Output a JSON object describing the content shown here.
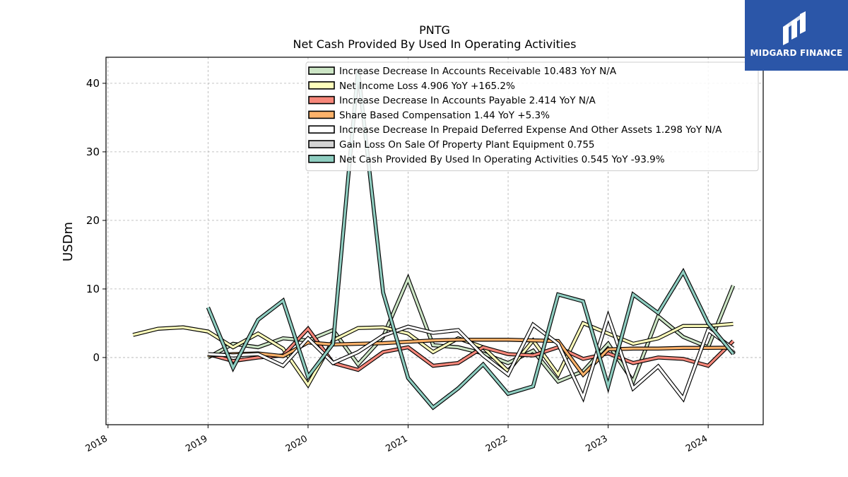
{
  "brand": {
    "name": "MIDGARD FINANCE",
    "bg_color": "#2b56a8"
  },
  "chart_data": {
    "type": "line",
    "title": "PNTG",
    "subtitle": "Net Cash Provided By Used In Operating Activities",
    "xlabel": "",
    "ylabel": "USDm",
    "xlim": [
      2017.98,
      2024.55
    ],
    "ylim": [
      -9.8,
      43.8
    ],
    "xticks": [
      2018,
      2019,
      2020,
      2021,
      2022,
      2023,
      2024
    ],
    "xtick_labels": [
      "2018",
      "2019",
      "2020",
      "2021",
      "2022",
      "2023",
      "2024"
    ],
    "yticks": [
      0,
      10,
      20,
      30,
      40
    ],
    "ytick_labels": [
      "0",
      "10",
      "20",
      "30",
      "40"
    ],
    "grid": true,
    "legend_position": "top-center",
    "series": [
      {
        "name": "Increase Decrease In Accounts Receivable  10.483 YoY N/A",
        "color": "#cce5c5",
        "x": [
          2019.0,
          2019.25,
          2019.5,
          2019.75,
          2020.0,
          2020.25,
          2020.5,
          2020.75,
          2021.0,
          2021.25,
          2021.5,
          2021.75,
          2022.0,
          2022.25,
          2022.5,
          2022.75,
          2023.0,
          2023.25,
          2023.5,
          2023.75,
          2024.0,
          2024.25
        ],
        "y": [
          0.0,
          2.0,
          1.5,
          2.8,
          2.5,
          4.0,
          -1.0,
          3.0,
          11.5,
          1.8,
          1.5,
          0.6,
          -0.8,
          1.0,
          -3.5,
          -2.0,
          2.0,
          -3.5,
          6.0,
          3.0,
          1.5,
          10.5
        ]
      },
      {
        "name": "Net Income Loss  4.906 YoY +165.2%",
        "color": "#ffffbb",
        "x": [
          2018.25,
          2018.5,
          2018.75,
          2019.0,
          2019.25,
          2019.5,
          2019.75,
          2020.0,
          2020.25,
          2020.5,
          2020.75,
          2021.0,
          2021.25,
          2021.5,
          2021.75,
          2022.0,
          2022.25,
          2022.5,
          2022.75,
          2023.0,
          2023.25,
          2023.5,
          2023.75,
          2024.0,
          2024.25
        ],
        "y": [
          3.3,
          4.2,
          4.4,
          3.8,
          1.5,
          3.5,
          1.3,
          -4.0,
          2.5,
          4.3,
          4.4,
          3.5,
          0.8,
          2.8,
          1.5,
          -2.0,
          2.5,
          -2.5,
          5.0,
          3.5,
          2.0,
          2.8,
          4.6,
          4.6,
          4.9
        ]
      },
      {
        "name": "Increase Decrease In Accounts Payable  2.414 YoY N/A",
        "color": "#f7877a",
        "x": [
          2019.0,
          2019.25,
          2019.5,
          2019.75,
          2020.0,
          2020.25,
          2020.5,
          2020.75,
          2021.0,
          2021.25,
          2021.5,
          2021.75,
          2022.0,
          2022.25,
          2022.5,
          2022.75,
          2023.0,
          2023.25,
          2023.5,
          2023.75,
          2024.0,
          2024.25
        ],
        "y": [
          0.5,
          -0.5,
          0.0,
          0.3,
          4.2,
          -0.8,
          -1.8,
          0.8,
          1.5,
          -1.2,
          -0.8,
          1.5,
          0.5,
          0.3,
          1.5,
          -0.2,
          0.6,
          -0.8,
          0.0,
          -0.2,
          -1.2,
          2.4
        ]
      },
      {
        "name": "Share Based Compensation  1.44 YoY +5.3%",
        "color": "#fdb26a",
        "x": [
          2019.0,
          2019.25,
          2019.5,
          2019.75,
          2020.0,
          2020.25,
          2020.5,
          2020.75,
          2021.0,
          2021.25,
          2021.5,
          2021.75,
          2022.0,
          2022.25,
          2022.5,
          2022.75,
          2023.0,
          2023.25,
          2023.5,
          2023.75,
          2024.0,
          2024.25
        ],
        "y": [
          0.3,
          0.5,
          0.6,
          0.2,
          2.2,
          1.9,
          2.0,
          2.1,
          2.3,
          2.5,
          2.6,
          2.6,
          2.6,
          2.5,
          2.4,
          -2.5,
          1.2,
          1.3,
          1.3,
          1.4,
          1.4,
          1.44
        ]
      },
      {
        "name": "Increase Decrease In Prepaid Deferred Expense And Other Assets  1.298 YoY N/A",
        "color": "#ffffff",
        "x": [
          2019.0,
          2019.25,
          2019.5,
          2019.75,
          2020.0,
          2020.25,
          2020.5,
          2020.75,
          2021.0,
          2021.25,
          2021.5,
          2021.75,
          2022.0,
          2022.25,
          2022.5,
          2022.75,
          2023.0,
          2023.25,
          2023.5,
          2023.75,
          2024.0,
          2024.25
        ],
        "y": [
          0.5,
          0.3,
          0.5,
          -1.2,
          2.8,
          -0.8,
          0.8,
          3.2,
          4.5,
          3.6,
          4.0,
          0.3,
          -2.5,
          4.8,
          2.0,
          -5.8,
          6.0,
          -4.5,
          -1.3,
          -6.0,
          4.0,
          1.3
        ]
      },
      {
        "name": "Gain Loss On Sale Of Property Plant Equipment  0.755",
        "color": "#d3d3d3",
        "x": [
          2024.25
        ],
        "y": [
          0.755
        ]
      },
      {
        "name": "Net Cash Provided By Used In Operating Activities  0.545 YoY -93.9%",
        "color": "#8ecdc0",
        "x": [
          2019.0,
          2019.25,
          2019.5,
          2019.75,
          2020.0,
          2020.25,
          2020.5,
          2020.75,
          2021.0,
          2021.25,
          2021.5,
          2021.75,
          2022.0,
          2022.25,
          2022.5,
          2022.75,
          2023.0,
          2023.25,
          2023.5,
          2023.75,
          2024.0,
          2024.25
        ],
        "y": [
          7.3,
          -1.5,
          5.5,
          8.3,
          -2.8,
          2.0,
          42.0,
          9.5,
          -3.0,
          -7.3,
          -4.5,
          -1.0,
          -5.3,
          -4.2,
          9.2,
          8.2,
          -4.2,
          9.2,
          6.5,
          12.5,
          5.0,
          0.545
        ]
      }
    ]
  }
}
